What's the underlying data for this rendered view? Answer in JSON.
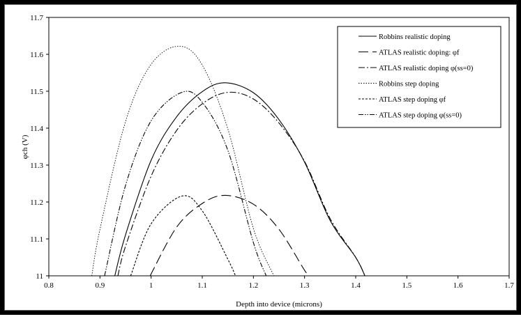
{
  "chart_data": {
    "type": "line",
    "title": "",
    "xlabel": "Depth into device (microns)",
    "ylabel": "φch (V)",
    "xlim": [
      0.8,
      1.7
    ],
    "ylim": [
      11,
      11.7
    ],
    "xticks": [
      "0.8",
      "0.9",
      "1",
      "1.1",
      "1.2",
      "1.3",
      "1.4",
      "1.5",
      "1.6",
      "1.7"
    ],
    "yticks": [
      "11",
      "11.1",
      "11.2",
      "11.3",
      "11.4",
      "11.5",
      "11.6",
      "11.7"
    ],
    "grid": false,
    "legend_position": "top-right",
    "series": [
      {
        "name": "Robbins realistic doping",
        "line_style": "solid",
        "x": [
          0.929,
          0.95,
          1.0,
          1.05,
          1.1,
          1.145,
          1.2,
          1.25,
          1.3,
          1.35,
          1.4,
          1.418
        ],
        "y": [
          11.0,
          11.111,
          11.313,
          11.431,
          11.499,
          11.523,
          11.496,
          11.423,
          11.308,
          11.15,
          11.05,
          11.0
        ]
      },
      {
        "name": "ATLAS realistic doping: φf",
        "line_style": "long-dash",
        "x": [
          0.998,
          1.05,
          1.1,
          1.145,
          1.2,
          1.25,
          1.3,
          1.309
        ],
        "y": [
          11.0,
          11.132,
          11.196,
          11.218,
          11.194,
          11.126,
          11.015,
          11.0
        ]
      },
      {
        "name": "ATLAS realistic doping φ(ss=0)",
        "line_style": "dash-dot",
        "x": [
          0.935,
          0.95,
          1.0,
          1.05,
          1.1,
          1.15,
          1.2,
          1.25,
          1.3,
          1.35,
          1.4,
          1.418
        ],
        "y": [
          11.0,
          11.08,
          11.27,
          11.394,
          11.466,
          11.497,
          11.479,
          11.414,
          11.31,
          11.155,
          11.05,
          11.0
        ]
      },
      {
        "name": "Robbins step doping",
        "line_style": "dotted",
        "x": [
          0.884,
          0.9,
          0.95,
          1.0,
          1.055,
          1.1,
          1.15,
          1.2,
          1.24
        ],
        "y": [
          11.0,
          11.126,
          11.418,
          11.573,
          11.622,
          11.571,
          11.398,
          11.128,
          11.0
        ]
      },
      {
        "name": "ATLAS step doping φf",
        "line_style": "short-dash",
        "x": [
          0.96,
          1.0,
          1.06,
          1.1,
          1.15,
          1.165
        ],
        "y": [
          11.0,
          11.141,
          11.216,
          11.176,
          11.045,
          11.0
        ]
      },
      {
        "name": "ATLAS step doping φ(ss=0)",
        "line_style": "dash-dot-dot",
        "x": [
          0.909,
          0.95,
          1.0,
          1.06,
          1.1,
          1.15,
          1.2,
          1.225
        ],
        "y": [
          11.0,
          11.245,
          11.42,
          11.497,
          11.47,
          11.34,
          11.09,
          11.0
        ]
      }
    ]
  }
}
